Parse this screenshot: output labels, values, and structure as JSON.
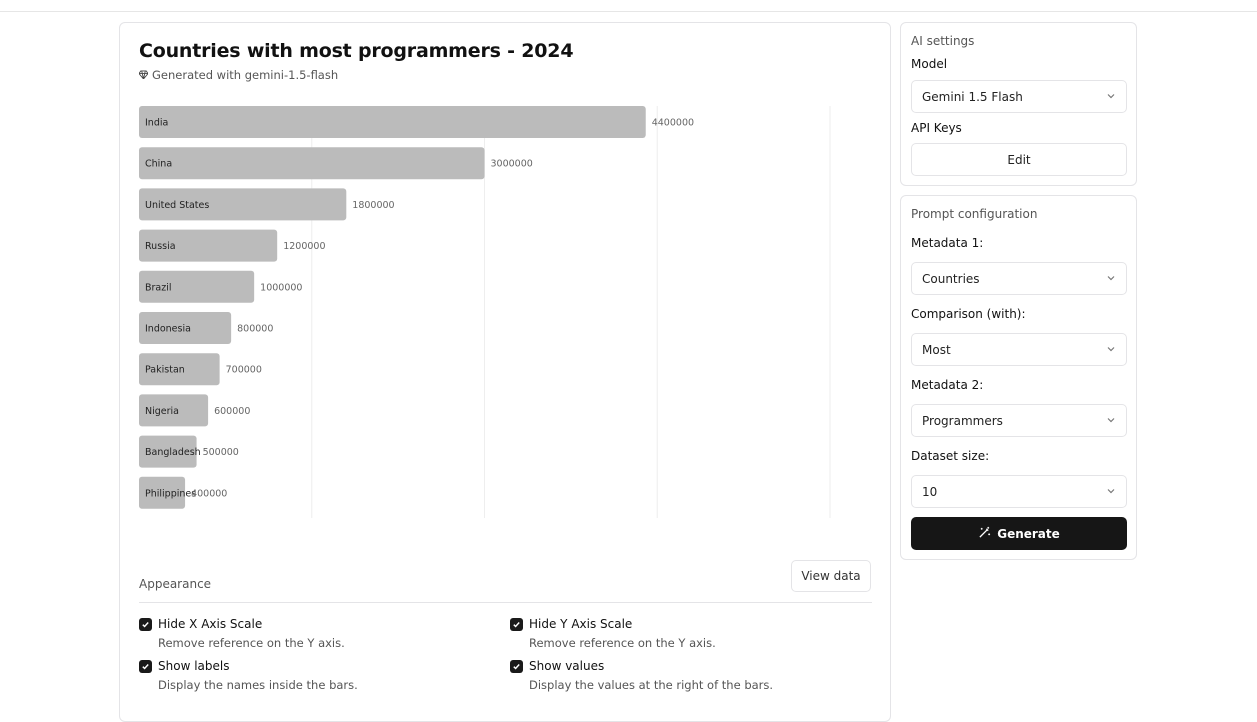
{
  "chart_card": {
    "title": "Countries with most programmers - 2024",
    "subtitle": "Generated with gemini-1.5-flash",
    "appearance_label": "Appearance",
    "view_data_label": "View data",
    "options": [
      {
        "label": "Hide X Axis Scale",
        "description": "Remove reference on the Y axis.",
        "checked": true
      },
      {
        "label": "Hide Y Axis Scale",
        "description": "Remove reference on the Y axis.",
        "checked": true
      },
      {
        "label": "Show labels",
        "description": "Display the names inside the bars.",
        "checked": true
      },
      {
        "label": "Show values",
        "description": "Display the values at the right of the bars.",
        "checked": true
      }
    ]
  },
  "chart_data": {
    "type": "bar",
    "orientation": "horizontal",
    "title": "Countries with most programmers - 2024",
    "categories": [
      "India",
      "China",
      "United States",
      "Russia",
      "Brazil",
      "Indonesia",
      "Pakistan",
      "Nigeria",
      "Bangladesh",
      "Philippines"
    ],
    "values": [
      4400000,
      3000000,
      1800000,
      1200000,
      1000000,
      800000,
      700000,
      600000,
      500000,
      400000
    ],
    "value_labels": [
      "4400000",
      "3000000",
      "1800000",
      "1200000",
      "1000000",
      "800000",
      "700000",
      "600000",
      "500000",
      "400000"
    ],
    "xlim": [
      0,
      6000000
    ],
    "grid_x": [
      1500000,
      3000000,
      4500000,
      6000000
    ],
    "xlabel": "",
    "ylabel": "",
    "bar_color": "#bbbbbb",
    "grid_color": "#eeeeee"
  },
  "ai_settings": {
    "title": "AI settings",
    "model_label": "Model",
    "model_value": "Gemini 1.5 Flash",
    "api_keys_label": "API Keys",
    "edit_label": "Edit"
  },
  "prompt_config": {
    "title": "Prompt configuration",
    "metadata1_label": "Metadata 1:",
    "metadata1_value": "Countries",
    "comparison_label": "Comparison (with):",
    "comparison_value": "Most",
    "metadata2_label": "Metadata 2:",
    "metadata2_value": "Programmers",
    "dataset_label": "Dataset size:",
    "dataset_value": "10",
    "generate_label": "Generate"
  },
  "icons": {
    "subtitle_icon": "gem-icon",
    "select_icon": "chevron-down-icon",
    "generate_icon": "magic-wand-icon",
    "checkbox_icon": "check-icon"
  }
}
